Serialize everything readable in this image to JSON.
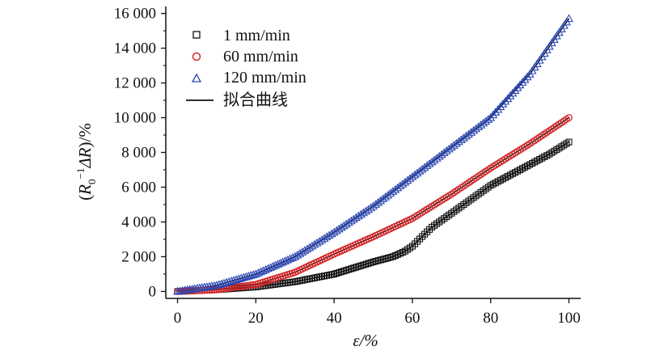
{
  "chart_data": {
    "type": "scatter",
    "xlabel": "ε/%",
    "ylabel": "(R0−1ΔR)/%",
    "ylabel_parts": {
      "open": "(",
      "R": "R",
      "sub": "0",
      "sup": "−1",
      "delta": "ΔR",
      "close": ")/%"
    },
    "xlim": [
      -3,
      103
    ],
    "ylim": [
      -400,
      16400
    ],
    "x_ticks": [
      0,
      20,
      40,
      60,
      80,
      100
    ],
    "x_tick_labels": [
      "0",
      "20",
      "40",
      "60",
      "80",
      "100"
    ],
    "y_ticks": [
      0,
      2000,
      4000,
      6000,
      8000,
      10000,
      12000,
      14000,
      16000
    ],
    "y_tick_labels": [
      "0",
      "2 000",
      "4 000",
      "6 000",
      "8 000",
      "10 000",
      "12 000",
      "14 000",
      "16 000"
    ],
    "grid": false,
    "legend_position": "top-left",
    "series": [
      {
        "name": "1 mm/min",
        "marker": "square",
        "color": "#111111",
        "x": [
          0,
          10,
          20,
          30,
          40,
          45,
          50,
          55,
          58,
          60,
          62,
          65,
          70,
          75,
          80,
          85,
          90,
          95,
          100
        ],
        "y": [
          0,
          100,
          260,
          560,
          1000,
          1350,
          1700,
          2000,
          2300,
          2600,
          3050,
          3700,
          4500,
          5300,
          6100,
          6700,
          7300,
          7900,
          8600
        ]
      },
      {
        "name": "60 mm/min",
        "marker": "circle",
        "color": "#d62728",
        "x": [
          0,
          10,
          20,
          30,
          40,
          50,
          60,
          70,
          80,
          90,
          100
        ],
        "y": [
          0,
          100,
          400,
          1100,
          2150,
          3150,
          4200,
          5600,
          7100,
          8500,
          10000
        ]
      },
      {
        "name": "120 mm/min",
        "marker": "triangle",
        "color": "#2b47b4",
        "x": [
          0,
          10,
          20,
          30,
          40,
          50,
          60,
          70,
          80,
          90,
          100
        ],
        "y": [
          0,
          350,
          1000,
          2000,
          3400,
          4900,
          6600,
          8300,
          10000,
          12500,
          15700
        ]
      },
      {
        "name": "拟合曲线",
        "marker": "line",
        "color": "#111111",
        "fits": [
          {
            "x": [
              0,
              10,
              20,
              30,
              40,
              45,
              50,
              55,
              58,
              60,
              62,
              65,
              70,
              75,
              80,
              85,
              90,
              95,
              100
            ],
            "y": [
              0,
              100,
              260,
              560,
              1000,
              1350,
              1700,
              2000,
              2300,
              2600,
              3050,
              3700,
              4500,
              5300,
              6100,
              6700,
              7300,
              7900,
              8600
            ]
          },
          {
            "x": [
              0,
              10,
              20,
              30,
              40,
              50,
              60,
              70,
              80,
              90,
              100
            ],
            "y": [
              0,
              100,
              400,
              1100,
              2150,
              3150,
              4200,
              5600,
              7100,
              8500,
              10000
            ]
          },
          {
            "x": [
              0,
              10,
              20,
              30,
              40,
              50,
              60,
              70,
              80,
              90,
              100
            ],
            "y": [
              0,
              350,
              1000,
              2000,
              3400,
              4900,
              6600,
              8300,
              10000,
              12500,
              15700
            ]
          }
        ]
      }
    ]
  }
}
